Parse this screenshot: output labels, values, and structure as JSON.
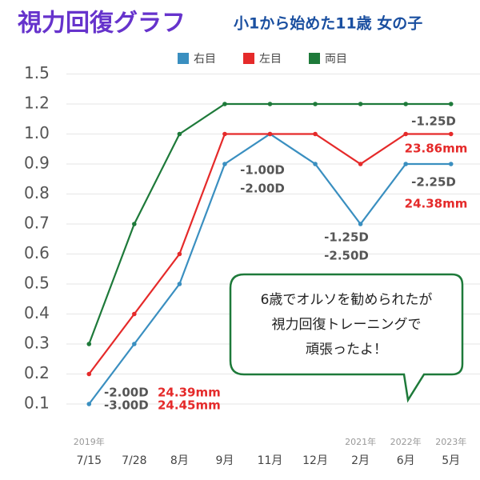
{
  "chart_data": {
    "type": "line",
    "title": "視力回復グラフ",
    "subtitle": "小1から始めた11歳 女の子",
    "categories": [
      "7/15",
      "7/28",
      "8月",
      "9月",
      "11月",
      "12月",
      "2月",
      "6月",
      "5月"
    ],
    "year_labels": [
      "2019年",
      null,
      null,
      null,
      null,
      null,
      "2021年",
      "2022年",
      "2023年"
    ],
    "series": [
      {
        "name": "右目",
        "color": "#3a8fc0",
        "values": [
          0.1,
          0.3,
          0.5,
          0.9,
          1.0,
          0.9,
          0.7,
          0.9,
          0.9
        ]
      },
      {
        "name": "左目",
        "color": "#e52a2a",
        "values": [
          0.2,
          0.4,
          0.6,
          1.0,
          1.0,
          1.0,
          0.9,
          1.0,
          1.0
        ]
      },
      {
        "name": "両目",
        "color": "#1e7a3a",
        "values": [
          0.3,
          0.7,
          1.0,
          1.2,
          1.2,
          1.2,
          1.2,
          1.2,
          1.2
        ]
      }
    ],
    "ylim": [
      0.1,
      1.5
    ],
    "yticks": [
      0.1,
      0.2,
      0.3,
      0.4,
      0.5,
      0.6,
      0.7,
      0.8,
      0.9,
      {
        "value": 1.0,
        "label": "1.0"
      },
      1.2,
      1.5
    ],
    "y_scale": "ordinal",
    "grid": true,
    "legend": "top",
    "annotations": [
      "-2.00D",
      "24.39mm",
      "-3.00D",
      "24.45mm",
      "-1.00D",
      "-2.00D",
      "-1.25D",
      "-2.50D",
      "-1.25D",
      "23.86mm",
      "-2.25D",
      "24.38mm"
    ],
    "callout": [
      "6歳でオルソを勧められたが",
      "視力回復トレーニングで",
      "頑張ったよ！"
    ]
  }
}
